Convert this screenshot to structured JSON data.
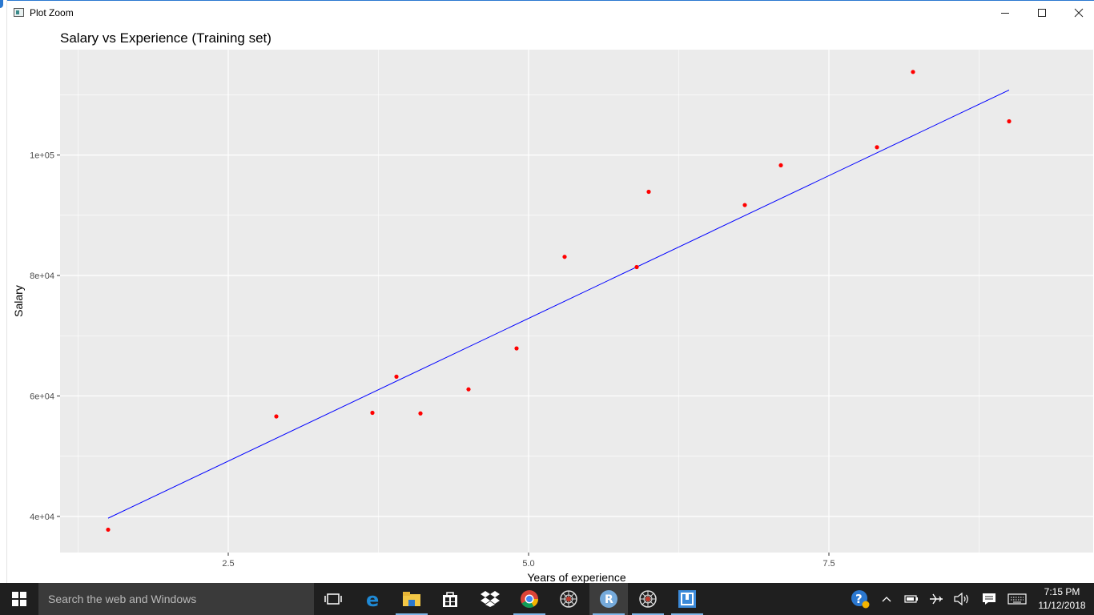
{
  "window": {
    "title": "Plot Zoom"
  },
  "chart_data": {
    "type": "scatter",
    "title": "Salary vs Experience (Training set)",
    "xlabel": "Years of experience",
    "ylabel": "Salary",
    "xlim": [
      1.1,
      9.7
    ],
    "ylim": [
      34000,
      117500
    ],
    "x_ticks": [
      2.5,
      5.0,
      7.5
    ],
    "x_tick_labels": [
      "2.5",
      "5.0",
      "7.5"
    ],
    "y_ticks": [
      40000,
      60000,
      80000,
      100000
    ],
    "y_tick_labels": [
      "4e+04",
      "6e+04",
      "8e+04",
      "1e+05"
    ],
    "grid": true,
    "points_color": "#ff0000",
    "line_color": "#0000ff",
    "points": [
      {
        "x": 1.5,
        "y": 37800
      },
      {
        "x": 2.9,
        "y": 56600
      },
      {
        "x": 3.7,
        "y": 57200
      },
      {
        "x": 3.9,
        "y": 63200
      },
      {
        "x": 4.1,
        "y": 57100
      },
      {
        "x": 4.5,
        "y": 61100
      },
      {
        "x": 4.9,
        "y": 67900
      },
      {
        "x": 5.3,
        "y": 83100
      },
      {
        "x": 5.9,
        "y": 81400
      },
      {
        "x": 6.0,
        "y": 93900
      },
      {
        "x": 6.8,
        "y": 91700
      },
      {
        "x": 7.1,
        "y": 98300
      },
      {
        "x": 7.9,
        "y": 101300
      },
      {
        "x": 8.2,
        "y": 113800
      },
      {
        "x": 9.0,
        "y": 105600
      }
    ],
    "regression_line": [
      {
        "x": 1.5,
        "y": 39700
      },
      {
        "x": 9.0,
        "y": 110800
      }
    ]
  },
  "taskbar": {
    "search_placeholder": "Search the web and Windows",
    "time": "7:15 PM",
    "date": "11/12/2018",
    "apps": [
      "task-view",
      "edge",
      "file-explorer",
      "store",
      "dropbox",
      "chrome",
      "spider",
      "r",
      "spider",
      "app"
    ]
  }
}
